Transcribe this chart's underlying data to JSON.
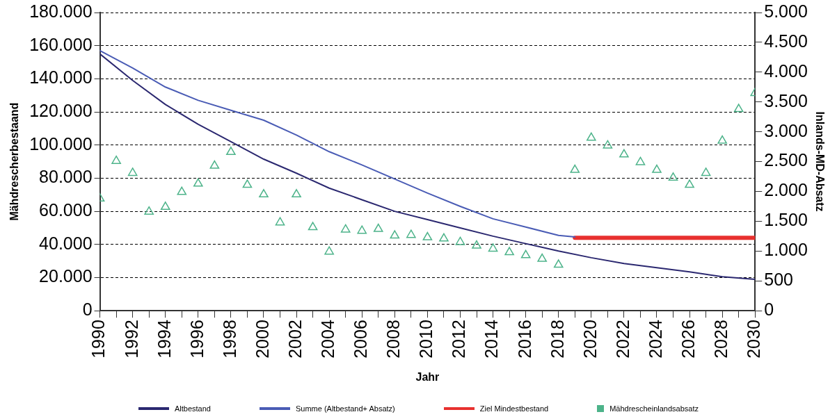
{
  "chart_data": {
    "type": "line",
    "xlabel": "Jahr",
    "ylabel": "Mähdrescherbestaand",
    "y2label": "Inlands-MD-Absatz",
    "xlim": [
      1990,
      2030
    ],
    "xticks": [
      1990,
      {
        "value": 1991,
        "label": null
      },
      1992,
      {
        "value": 1993,
        "label": null
      },
      1994,
      {
        "value": 1995,
        "label": null
      },
      1996,
      {
        "value": 1997,
        "label": null
      },
      1998,
      {
        "value": 1999,
        "label": null
      },
      2000,
      {
        "value": 2001,
        "label": null
      },
      2002,
      {
        "value": 2003,
        "label": null
      },
      2004,
      {
        "value": 2005,
        "label": null
      },
      2006,
      {
        "value": 2007,
        "label": null
      },
      2008,
      {
        "value": 2009,
        "label": null
      },
      2010,
      {
        "value": 2011,
        "label": null
      },
      2012,
      {
        "value": 2013,
        "label": null
      },
      2014,
      {
        "value": 2015,
        "label": null
      },
      2016,
      {
        "value": 2017,
        "label": null
      },
      2018,
      {
        "value": 2019,
        "label": null
      },
      2020,
      {
        "value": 2021,
        "label": null
      },
      2022,
      {
        "value": 2023,
        "label": null
      },
      2024,
      {
        "value": 2025,
        "label": null
      },
      2026,
      {
        "value": 2027,
        "label": null
      },
      2028,
      {
        "value": 2029,
        "label": null
      },
      2030
    ],
    "ylim": [
      0,
      180000
    ],
    "yticks": [
      0,
      {
        "value": 20000,
        "label": "20.000"
      },
      {
        "value": 40000,
        "label": "40.000"
      },
      {
        "value": 60000,
        "label": "60.000"
      },
      {
        "value": 80000,
        "label": "80.000"
      },
      {
        "value": 100000,
        "label": "100.000"
      },
      {
        "value": 120000,
        "label": "120.000"
      },
      {
        "value": 140000,
        "label": "140.000"
      },
      {
        "value": 160000,
        "label": "160.000"
      },
      {
        "value": 180000,
        "label": "180.000"
      }
    ],
    "y2lim": [
      0,
      5000
    ],
    "y2ticks": [
      0,
      500,
      {
        "value": 1000,
        "label": "1.000"
      },
      {
        "value": 1500,
        "label": "1.500"
      },
      {
        "value": 2000,
        "label": "2.000"
      },
      {
        "value": 2500,
        "label": "2.500"
      },
      {
        "value": 3000,
        "label": "3.000"
      },
      {
        "value": 3500,
        "label": "3.500"
      },
      {
        "value": 4000,
        "label": "4.000"
      },
      {
        "value": 4500,
        "label": "4.500"
      },
      {
        "value": 5000,
        "label": "5.000"
      }
    ],
    "grid": "y",
    "legend": "bottom",
    "series": [
      {
        "name": "Altbestand",
        "type": "line",
        "marker": "none",
        "color": "#2b2870",
        "x": [
          1990,
          1992,
          1994,
          1996,
          1998,
          2000,
          2002,
          2004,
          2006,
          2008,
          2010,
          2012,
          2014,
          2016,
          2018,
          2020,
          2022,
          2024,
          2026,
          2028,
          2030
        ],
        "values": [
          155000,
          139000,
          124500,
          112500,
          102000,
          91500,
          83000,
          74000,
          67000,
          60000,
          55000,
          50000,
          45000,
          40500,
          36000,
          32000,
          28500,
          26000,
          23500,
          20500,
          19000
        ]
      },
      {
        "name": "Summe (Altbestand+ Absatz)",
        "type": "line",
        "marker": "none",
        "color": "#4a5cb5",
        "x": [
          1990,
          1992,
          1994,
          1996,
          1998,
          2000,
          2002,
          2004,
          2006,
          2008,
          2010,
          2012,
          2014,
          2016,
          2018,
          2019
        ],
        "values": [
          157000,
          146500,
          135000,
          127000,
          121000,
          115000,
          106000,
          96000,
          88000,
          79500,
          71000,
          63000,
          55500,
          50500,
          45500,
          44500
        ]
      },
      {
        "name": "Ziel Mindestbestand",
        "type": "line",
        "marker": "none",
        "color": "#e8312f",
        "x": [
          2019,
          2030
        ],
        "values": [
          44000,
          44000
        ]
      },
      {
        "name": "Mähdrescheinlandsabsatz",
        "type": "scatter",
        "marker": "triangle",
        "axis": "y2",
        "color": "#4db38a",
        "x": [
          1990,
          1991,
          1992,
          1993,
          1994,
          1995,
          1996,
          1997,
          1998,
          1999,
          2000,
          2001,
          2002,
          2003,
          2004,
          2005,
          2006,
          2007,
          2008,
          2009,
          2010,
          2011,
          2012,
          2013,
          2014,
          2015,
          2016,
          2017,
          2018,
          2019,
          2020,
          2021,
          2022,
          2023,
          2024,
          2025,
          2026,
          2027,
          2028,
          2029,
          2030
        ],
        "values": [
          1880,
          2510,
          2310,
          1660,
          1740,
          1990,
          2130,
          2430,
          2660,
          2110,
          1950,
          1480,
          1950,
          1400,
          990,
          1360,
          1340,
          1370,
          1260,
          1270,
          1230,
          1210,
          1150,
          1090,
          1040,
          980,
          930,
          870,
          770,
          2360,
          2900,
          2770,
          2620,
          2490,
          2360,
          2230,
          2110,
          2310,
          2850,
          3380,
          3650
        ]
      }
    ]
  }
}
